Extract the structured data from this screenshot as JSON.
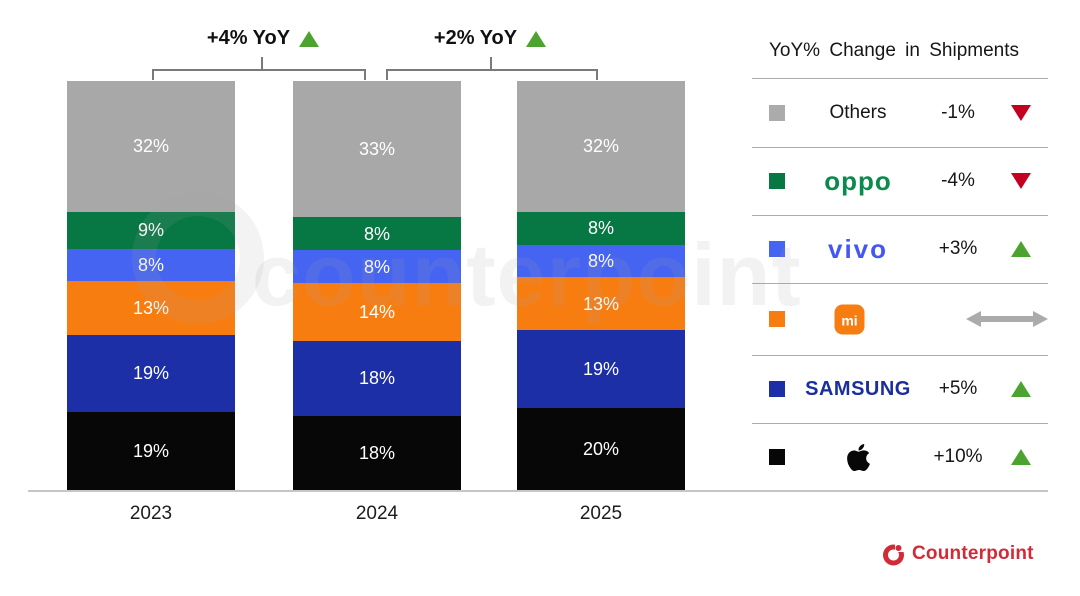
{
  "chart_data": {
    "type": "bar",
    "stacked": true,
    "title": "",
    "categories": [
      "2023",
      "2024",
      "2025"
    ],
    "value_suffix": "%",
    "stack_order": "top-to-bottom",
    "series": [
      {
        "name": "Others",
        "color": "#A9A8A8",
        "values": [
          32,
          33,
          32
        ]
      },
      {
        "name": "OPPO",
        "color": "#077843",
        "values": [
          9,
          8,
          8
        ]
      },
      {
        "name": "vivo",
        "color": "#4464F1",
        "values": [
          8,
          8,
          8
        ]
      },
      {
        "name": "Xiaomi",
        "color": "#F87D11",
        "values": [
          13,
          14,
          13
        ]
      },
      {
        "name": "Samsung",
        "color": "#1C2FA6",
        "values": [
          19,
          18,
          19
        ]
      },
      {
        "name": "Apple",
        "color": "#070707",
        "values": [
          19,
          18,
          20
        ]
      }
    ],
    "annotations": [
      {
        "label": "+4% YoY",
        "direction": "up",
        "span": [
          "2023",
          "2024"
        ]
      },
      {
        "label": "+2% YoY",
        "direction": "up",
        "span": [
          "2024",
          "2025"
        ]
      }
    ],
    "ylim": [
      0,
      100
    ],
    "grid": false,
    "legend_position": "right"
  },
  "legend": {
    "title": "YoY% Change in Shipments",
    "rows": [
      {
        "brand": "Others",
        "logo_text": "Others",
        "color": "#ABABAB",
        "change": "-1%",
        "direction": "down"
      },
      {
        "brand": "OPPO",
        "logo_text": "oppo",
        "color": "#077843",
        "change": "-4%",
        "direction": "down"
      },
      {
        "brand": "vivo",
        "logo_text": "vivo",
        "color": "#4464F1",
        "change": "+3%",
        "direction": "up"
      },
      {
        "brand": "Xiaomi",
        "logo_text": "mi",
        "color": "#F87D11",
        "change": "",
        "direction": "flat"
      },
      {
        "brand": "Samsung",
        "logo_text": "SAMSUNG",
        "color": "#1C2FA6",
        "change": "+5%",
        "direction": "up"
      },
      {
        "brand": "Apple",
        "logo_text": "",
        "color": "#070707",
        "change": "+10%",
        "direction": "up"
      }
    ]
  },
  "watermark": {
    "text": "counterpoint"
  },
  "footer": {
    "brand": "Counterpoint",
    "accent_color": "#D22B38"
  },
  "colors": {
    "up": "#4DA32F",
    "down": "#C40020",
    "flat": "#ABABAB",
    "axis_line": "#C6C6C6"
  }
}
